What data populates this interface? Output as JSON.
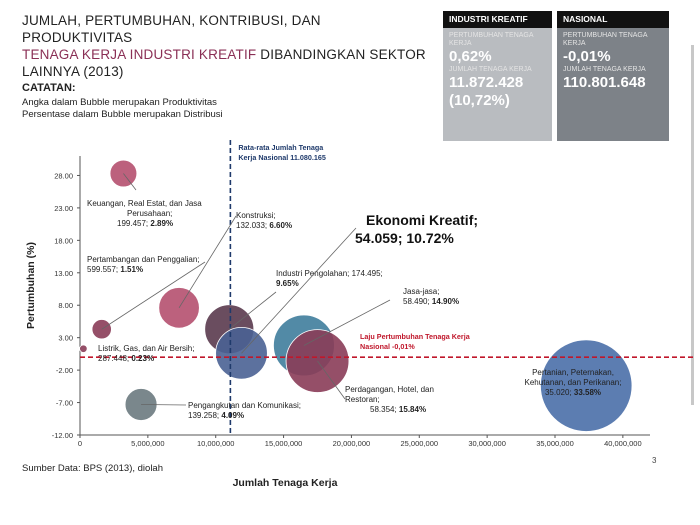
{
  "title": {
    "line1": "JUMLAH, PERTUMBUHAN, KONTRIBUSI, DAN PRODUKTIVITAS",
    "line2_highlight": "TENAGA KERJA INDUSTRI KREATIF",
    "line2_rest": " DIBANDINGKAN SEKTOR",
    "line3": "LAINNYA (2013)"
  },
  "notes": {
    "heading": "CATATAN:",
    "line1": "Angka dalam Bubble merupakan Produktivitas",
    "line2": "Persentase dalam Bubble merupakan Distribusi"
  },
  "industri_kreatif": {
    "header": "INDUSTRI KREATIF",
    "growth_label": "PERTUMBUHAN TENAGA KERJA",
    "growth_value": "0,62%",
    "workers_label": "JUMLAH TENAGA KERJA",
    "workers_value": "11.872.428",
    "share_value": "(10,72%)"
  },
  "nasional": {
    "header": "NASIONAL",
    "growth_label": "PERTUMBUHAN TENAGA KERJA",
    "growth_value": "-0,01%",
    "workers_label": "JUMLAH TENAGA KERJA",
    "workers_value": "110.801.648"
  },
  "source": "Sumber Data: BPS (2013), diolah",
  "page_number": "3",
  "colors": {
    "title_highlight": "#8a2f55",
    "ref_vertical": "#1f3a6b",
    "ref_horizontal": "#c0172b"
  },
  "chart_data": {
    "type": "scatter",
    "subtype": "bubble",
    "xlabel": "Jumlah Tenaga Kerja",
    "ylabel": "Pertumbuhan (%)",
    "xlim": [
      0,
      42000000
    ],
    "ylim": [
      -12,
      31
    ],
    "x_ticks": [
      0,
      5000000,
      10000000,
      15000000,
      20000000,
      25000000,
      30000000,
      35000000,
      40000000
    ],
    "x_tick_labels": [
      "0",
      "5,000,000",
      "10,000,000",
      "15,000,000",
      "20,000,000",
      "25,000,000",
      "30,000,000",
      "35,000,000",
      "40,000,000"
    ],
    "y_ticks": [
      -12,
      -7,
      -2,
      3,
      8,
      13,
      18,
      23,
      28
    ],
    "y_tick_labels": [
      "-12.00",
      "-7.00",
      "-2.00",
      "3.00",
      "8.00",
      "13.00",
      "18.00",
      "23.00",
      "28.00"
    ],
    "grid": false,
    "reference_lines": [
      {
        "axis": "x",
        "value": 11080165,
        "label1": "Rata-rata Jumlah Tenaga",
        "label2": "Kerja Nasional  11.080.165"
      },
      {
        "axis": "y",
        "value": -0.01,
        "label1": "Laju Pertumbuhan Tenaga Kerja",
        "label2": "Nasional -0,01%"
      }
    ],
    "points": [
      {
        "name1": "Keuangan, Real Estat, dan Jasa",
        "name2": "Perusahaan;",
        "value": "199.457; ",
        "share": "2.89%",
        "x": 3200000,
        "y": 28.3,
        "size": 2.89,
        "color": "#b5506f"
      },
      {
        "name1": "Pertambangan dan Penggalian;",
        "name2": "",
        "value": "599.557; ",
        "share": "1.51%",
        "x": 1600000,
        "y": 4.3,
        "size": 1.51,
        "color": "#8a3c58"
      },
      {
        "name1": "Listrik, Gas, dan Air Bersih;",
        "name2": "",
        "value": "287.448; ",
        "share": "0.23%",
        "x": 250000,
        "y": 1.3,
        "size": 0.23,
        "color": "#8a3c58"
      },
      {
        "name1": "Konstruksi;",
        "name2": "",
        "value": "132.033; ",
        "share": "6.60%",
        "x": 7300000,
        "y": 7.6,
        "size": 6.6,
        "color": "#b5506f"
      },
      {
        "name1": "Industri Pengolahan; 174.495;",
        "name2": "",
        "value": "",
        "share": "9.65%",
        "x": 11000000,
        "y": 4.3,
        "size": 9.65,
        "color": "#5a3a4e"
      },
      {
        "name1": "Ekonomi Kreatif;",
        "name2": "",
        "value": "54.059; ",
        "share": "10.72%",
        "x": 11900000,
        "y": 0.6,
        "size": 10.72,
        "color": "#4a6294"
      },
      {
        "name1": "Jasa-jasa;",
        "name2": "",
        "value": "58.490; ",
        "share": "14.90%",
        "x": 16500000,
        "y": 1.8,
        "size": 14.9,
        "color": "#3f7d9c"
      },
      {
        "name1": "Perdagangan, Hotel, dan",
        "name2": "Restoran;",
        "value": "58.354; ",
        "share": "15.84%",
        "x": 17500000,
        "y": -0.6,
        "size": 15.84,
        "color": "#8a3c58"
      },
      {
        "name1": "Pengangkutan dan Komunikasi;",
        "name2": "",
        "value": "139.258; ",
        "share": "4.09%",
        "x": 4500000,
        "y": -7.3,
        "size": 4.09,
        "color": "#6c7a7f"
      },
      {
        "name1": "Pertanian, Peternakan,",
        "name2": "Kehutanan, dan Perikanan;",
        "value": "35.020; ",
        "share": "33.58%",
        "x": 37300000,
        "y": -4.4,
        "size": 33.58,
        "color": "#4a6fa8"
      }
    ]
  }
}
